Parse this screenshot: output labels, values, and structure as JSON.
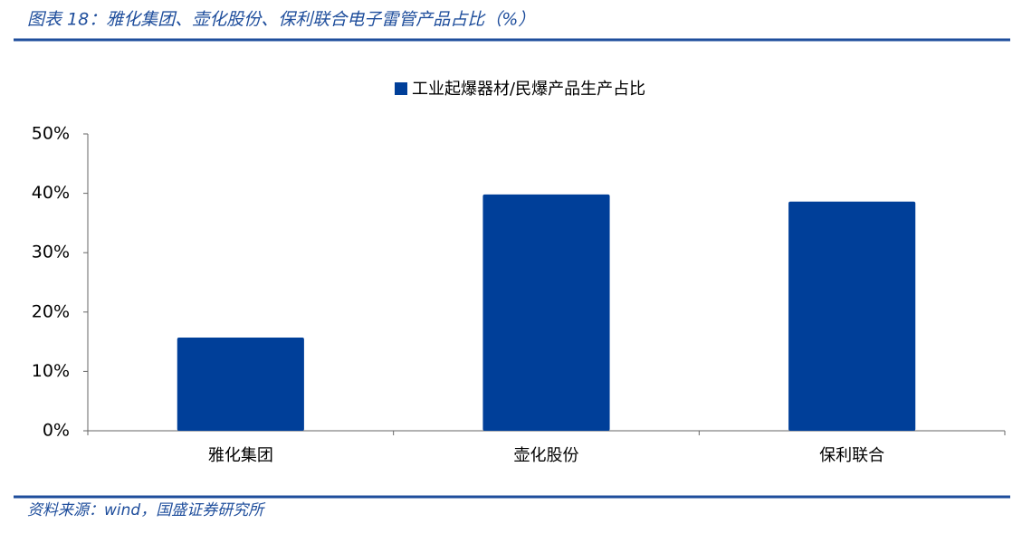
{
  "chart_data": {
    "type": "bar",
    "title": "图表 18：雅化集团、壶化股份、保利联合电子雷管产品占比（%）",
    "source": "资料来源：wind，国盛证券研究所",
    "categories": [
      "雅化集团",
      "壶化股份",
      "保利联合"
    ],
    "series": [
      {
        "name": "工业起爆器材/民爆产品生产占比",
        "color": "#003f99",
        "values": [
          15.7,
          39.8,
          38.6
        ]
      }
    ],
    "ylim": [
      0,
      50
    ],
    "yticks": [
      {
        "value": 0,
        "label": "0%"
      },
      {
        "value": 10,
        "label": "10%"
      },
      {
        "value": 20,
        "label": "20%"
      },
      {
        "value": 30,
        "label": "30%"
      },
      {
        "value": 40,
        "label": "40%"
      },
      {
        "value": 50,
        "label": "50%"
      }
    ],
    "legend": "top"
  }
}
